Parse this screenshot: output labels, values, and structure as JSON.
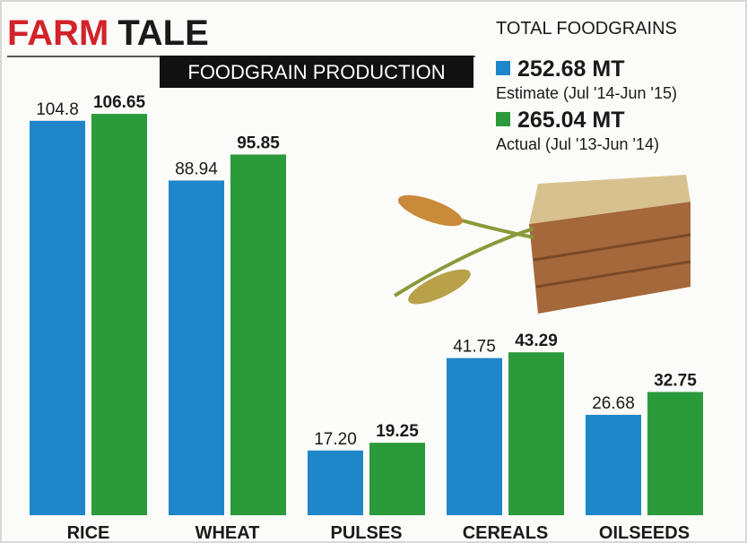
{
  "chart_data": {
    "type": "bar",
    "title": [
      "FARM",
      "TALE"
    ],
    "subtitle": "FOODGRAIN PRODUCTION",
    "legend_title": "TOTAL FOODGRAINS",
    "categories": [
      "RICE",
      "WHEAT",
      "PULSES",
      "CEREALS",
      "OILSEEDS"
    ],
    "series": [
      {
        "name": "Estimate (Jul '14-Jun '15)",
        "total": "252.68 MT",
        "color": "#1e86c9",
        "values": [
          104.8,
          88.94,
          17.2,
          41.75,
          26.68
        ],
        "value_labels": [
          "104.8",
          "88.94",
          "17.20",
          "41.75",
          "26.68"
        ]
      },
      {
        "name": "Actual (Jul '13-Jun '14)",
        "total": "265.04 MT",
        "color": "#2b9a3b",
        "values": [
          106.65,
          95.85,
          19.25,
          43.29,
          32.75
        ]
      }
    ]
  }
}
